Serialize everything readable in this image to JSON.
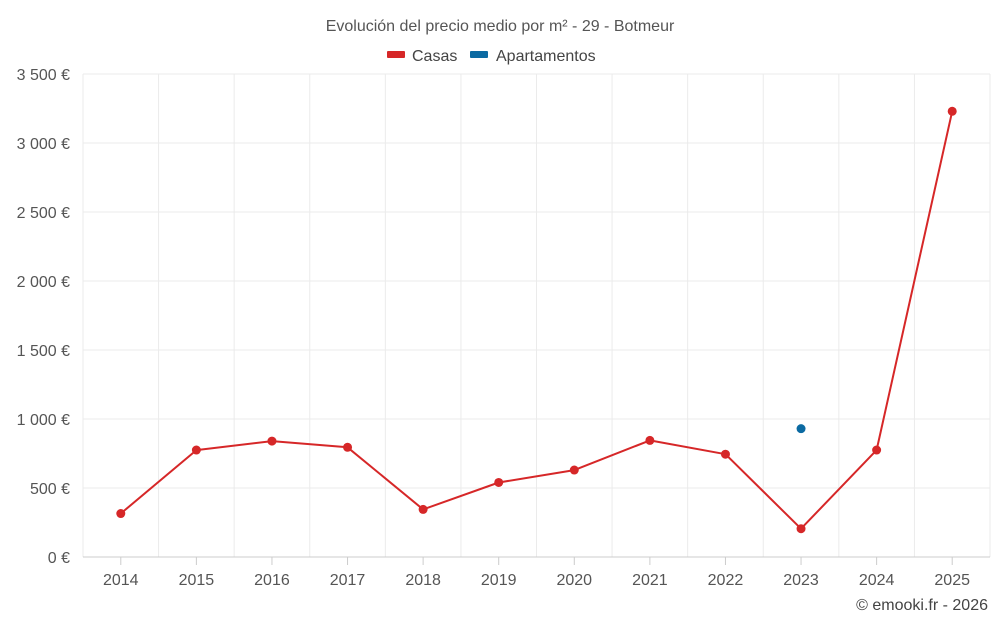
{
  "chart_data": {
    "type": "line",
    "title": "Evolución del precio medio por m² - 29 - Botmeur",
    "categories": [
      "2014",
      "2015",
      "2016",
      "2017",
      "2018",
      "2019",
      "2020",
      "2021",
      "2022",
      "2023",
      "2024",
      "2025"
    ],
    "series": [
      {
        "name": "Casas",
        "color": "#d62728",
        "values": [
          315,
          775,
          840,
          795,
          345,
          540,
          630,
          845,
          745,
          205,
          775,
          3230
        ]
      },
      {
        "name": "Apartamentos",
        "color": "#0b6aa2",
        "values": [
          null,
          null,
          null,
          null,
          null,
          null,
          null,
          null,
          null,
          930,
          null,
          null
        ]
      }
    ],
    "ylim": [
      0,
      3500
    ],
    "yticks": [
      0,
      500,
      1000,
      1500,
      2000,
      2500,
      3000,
      3500
    ],
    "ytick_labels": [
      "0 €",
      "500 €",
      "1 000 €",
      "1 500 €",
      "2 000 €",
      "2 500 €",
      "3 000 €",
      "3 500 €"
    ],
    "xlabel": "",
    "ylabel": "",
    "grid": true,
    "legend_position": "top-center",
    "credit": "© emooki.fr - 2026"
  }
}
